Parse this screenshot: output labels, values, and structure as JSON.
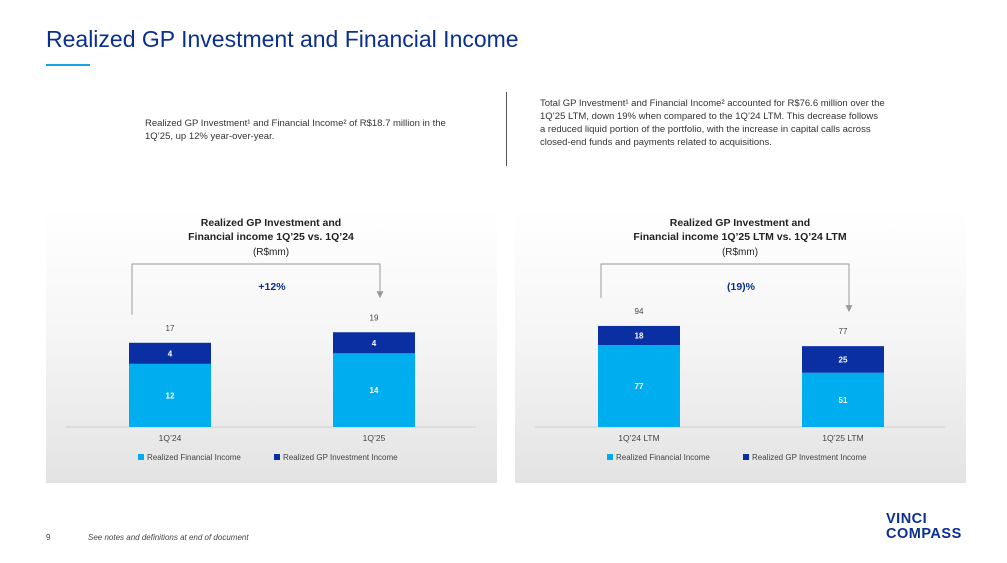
{
  "header": {
    "title": "Realized GP Investment and Financial Income"
  },
  "text_left": "Realized GP Investment¹ and Financial Income² of R$18.7 million in the 1Q’25, up 12% year-over-year.",
  "text_right": "Total GP Investment¹ and Financial Income² accounted for R$76.6 million over the 1Q’25 LTM, down 19% when compared to the 1Q’24 LTM. This decrease follows a reduced liquid portion of the portfolio, with the increase in capital calls across closed-end funds and payments related to acquisitions.",
  "colors": {
    "financial_income": "#00adef",
    "gp_investment": "#0a2fa3",
    "title": "#0a2f8f",
    "accent": "#1aa3e8"
  },
  "chart_data": [
    {
      "type": "bar",
      "stacked": true,
      "title_lines": [
        "Realized GP Investment and",
        "Financial income 1Q’25 vs. 1Q’24"
      ],
      "subtitle": "(R$mm)",
      "categories": [
        "1Q’24",
        "1Q’25"
      ],
      "series": [
        {
          "name": "Realized Financial Income",
          "values": [
            12,
            14
          ],
          "labels": [
            "12",
            "14"
          ],
          "color": "#00adef"
        },
        {
          "name": "Realized GP Investment Income",
          "values": [
            4,
            4
          ],
          "labels": [
            "4",
            "4"
          ],
          "color": "#0a2fa3"
        }
      ],
      "totals": [
        17,
        19
      ],
      "total_labels": [
        "17",
        "19"
      ],
      "ylim": [
        0,
        19
      ],
      "change_label": "+12%",
      "legend": "bottom"
    },
    {
      "type": "bar",
      "stacked": true,
      "title_lines": [
        "Realized GP Investment and",
        "Financial income 1Q’25 LTM vs. 1Q’24 LTM"
      ],
      "subtitle": "(R$mm)",
      "categories": [
        "1Q’24 LTM",
        "1Q’25 LTM"
      ],
      "series": [
        {
          "name": "Realized Financial Income",
          "values": [
            77,
            51
          ],
          "labels": [
            "77",
            "51"
          ],
          "color": "#00adef"
        },
        {
          "name": "Realized GP Investment Income",
          "values": [
            18,
            25
          ],
          "labels": [
            "18",
            "25"
          ],
          "color": "#0a2fa3"
        }
      ],
      "totals": [
        94,
        77
      ],
      "total_labels": [
        "94",
        "77"
      ],
      "ylim": [
        0,
        94
      ],
      "change_label": "(19)%",
      "legend": "bottom"
    }
  ],
  "footer": {
    "page": "9",
    "note": "See notes and definitions at end of document"
  },
  "logo": {
    "line1": "VINCI",
    "line2": "COMPASS"
  }
}
